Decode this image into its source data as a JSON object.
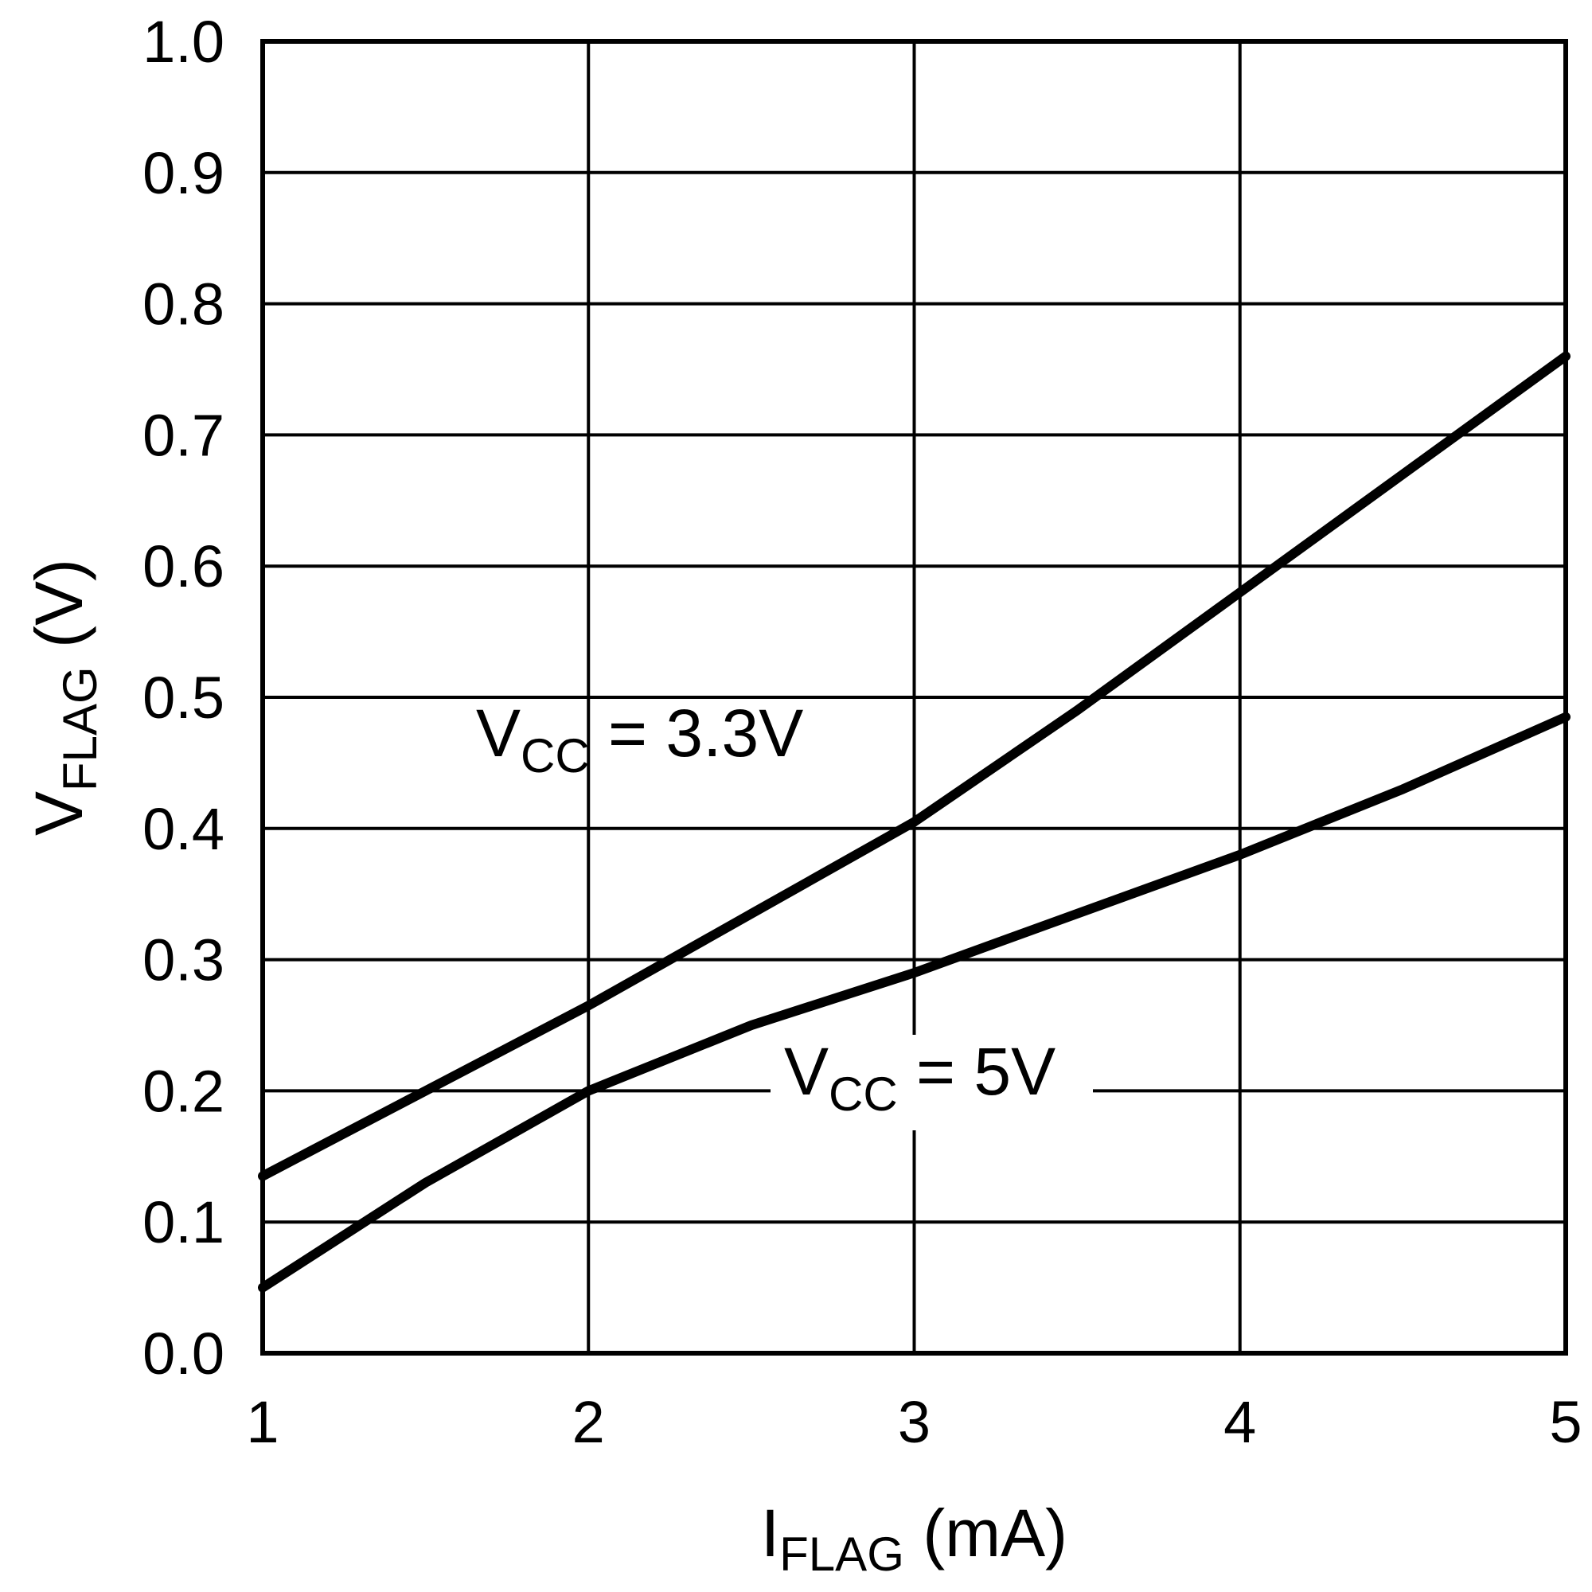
{
  "chart_data": {
    "type": "line",
    "title": "",
    "xlabel": {
      "main": "I",
      "sub": "FLAG",
      "unit": " (mA)"
    },
    "ylabel": {
      "main": "V",
      "sub": "FLAG",
      "unit": " (V)"
    },
    "xlim": [
      1,
      5
    ],
    "ylim": [
      0,
      1.0
    ],
    "grid": true,
    "x_ticks": [
      1,
      2,
      3,
      4,
      5
    ],
    "x_tick_labels": [
      "1",
      "2",
      "3",
      "4",
      "5"
    ],
    "y_ticks": [
      0,
      0.1,
      0.2,
      0.3,
      0.4,
      0.5,
      0.6,
      0.7,
      0.8,
      0.9,
      1.0
    ],
    "y_tick_labels": [
      "0.0",
      "0.1",
      "0.2",
      "0.3",
      "0.4",
      "0.5",
      "0.6",
      "0.7",
      "0.8",
      "0.9",
      "1.0"
    ],
    "series": [
      {
        "label_main": "V",
        "label_sub": "CC",
        "label_rest": " = 3.3V",
        "x": [
          1,
          1.5,
          2,
          2.5,
          3,
          3.5,
          4,
          4.5,
          5
        ],
        "values": [
          0.135,
          0.2,
          0.265,
          0.335,
          0.405,
          0.49,
          0.58,
          0.67,
          0.76
        ]
      },
      {
        "label_main": "V",
        "label_sub": "CC",
        "label_rest": " = 5V",
        "x": [
          1,
          1.5,
          2,
          2.5,
          3,
          3.5,
          4,
          4.5,
          5
        ],
        "values": [
          0.05,
          0.13,
          0.2,
          0.25,
          0.29,
          0.335,
          0.38,
          0.43,
          0.485
        ]
      }
    ]
  }
}
